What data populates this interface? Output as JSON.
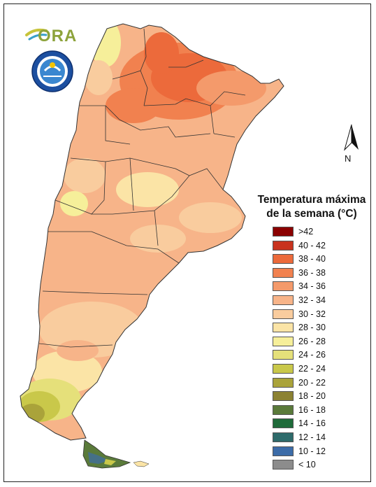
{
  "logo": {
    "text": "ORA"
  },
  "north_arrow": {
    "label": "N"
  },
  "legend": {
    "title_line1": "Temperatura máxima",
    "title_line2": "de la semana (°C)",
    "items": [
      {
        "label": ">42",
        "color": "#8b0000"
      },
      {
        "label": "40 - 42",
        "color": "#c8331e"
      },
      {
        "label": "38 - 40",
        "color": "#ec6a3b"
      },
      {
        "label": "36 - 38",
        "color": "#f1814f"
      },
      {
        "label": "34 - 36",
        "color": "#f49a6b"
      },
      {
        "label": "32 - 34",
        "color": "#f7b489"
      },
      {
        "label": "30 - 32",
        "color": "#f9cc9e"
      },
      {
        "label": "28 - 30",
        "color": "#fbe4a6"
      },
      {
        "label": "26 - 28",
        "color": "#f6ef9a"
      },
      {
        "label": "24 - 26",
        "color": "#e5e07a"
      },
      {
        "label": "22 - 24",
        "color": "#c9c84a"
      },
      {
        "label": "20 - 22",
        "color": "#aaa33a"
      },
      {
        "label": "18 - 20",
        "color": "#8c8232"
      },
      {
        "label": "16 - 18",
        "color": "#5a7a3a"
      },
      {
        "label": "14 - 16",
        "color": "#1f6b3a"
      },
      {
        "label": "12 - 14",
        "color": "#2e6b6b"
      },
      {
        "label": "10 - 12",
        "color": "#3c6ca8"
      },
      {
        "label": "< 10",
        "color": "#8c8c8c"
      }
    ]
  }
}
